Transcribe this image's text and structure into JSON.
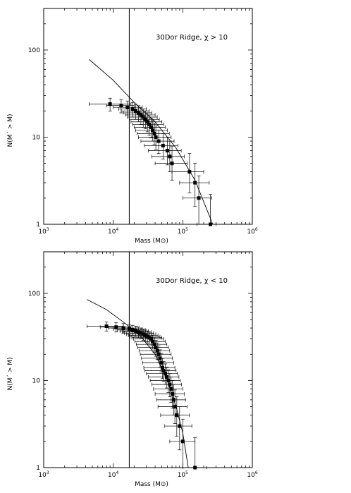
{
  "chart_data": [
    {
      "type": "scatter",
      "annotation": "30Dor Ridge, χ > 10",
      "xlabel": "Mass (M⊙)",
      "ylabel": "N(M´ > M)",
      "xscale": "log",
      "yscale": "log",
      "xlim": [
        1000,
        1000000
      ],
      "ylim": [
        1,
        300
      ],
      "xticks": [
        {
          "base": "10",
          "exp": "3"
        },
        {
          "base": "10",
          "exp": "4"
        },
        {
          "base": "10",
          "exp": "5"
        },
        {
          "base": "10",
          "exp": "6"
        }
      ],
      "yticks": [
        "1",
        "10",
        "100"
      ],
      "threshold_mass": 17000,
      "fit_line": [
        [
          4500,
          78
        ],
        [
          10000,
          45
        ],
        [
          20000,
          25
        ],
        [
          40000,
          15
        ],
        [
          80000,
          7.5
        ],
        [
          150000,
          3.2
        ],
        [
          270000,
          1
        ]
      ],
      "points": [
        {
          "x": 9000,
          "y": 24,
          "xerr": [
            4500,
            18000
          ],
          "yerr": [
            20,
            28
          ]
        },
        {
          "x": 13000,
          "y": 23,
          "xerr": [
            8000,
            20000
          ],
          "yerr": [
            19,
            27
          ]
        },
        {
          "x": 16000,
          "y": 22,
          "xerr": [
            10000,
            26000
          ],
          "yerr": [
            18,
            26
          ]
        },
        {
          "x": 19000,
          "y": 21,
          "xerr": [
            12000,
            30000
          ],
          "yerr": [
            17,
            25
          ]
        },
        {
          "x": 21000,
          "y": 20,
          "xerr": [
            13000,
            33000
          ],
          "yerr": [
            16,
            24
          ]
        },
        {
          "x": 23000,
          "y": 19,
          "xerr": [
            14000,
            36000
          ],
          "yerr": [
            15,
            23
          ]
        },
        {
          "x": 25000,
          "y": 18,
          "xerr": [
            15000,
            40000
          ],
          "yerr": [
            14,
            22
          ]
        },
        {
          "x": 27000,
          "y": 17,
          "xerr": [
            16000,
            43000
          ],
          "yerr": [
            13,
            21
          ]
        },
        {
          "x": 29000,
          "y": 16,
          "xerr": [
            17000,
            46000
          ],
          "yerr": [
            12.5,
            20
          ]
        },
        {
          "x": 31000,
          "y": 15,
          "xerr": [
            18000,
            50000
          ],
          "yerr": [
            11.5,
            19
          ]
        },
        {
          "x": 33000,
          "y": 14,
          "xerr": [
            19000,
            53000
          ],
          "yerr": [
            10.5,
            18
          ]
        },
        {
          "x": 35000,
          "y": 13,
          "xerr": [
            20000,
            56000
          ],
          "yerr": [
            9.8,
            16.5
          ]
        },
        {
          "x": 37000,
          "y": 12,
          "xerr": [
            21000,
            60000
          ],
          "yerr": [
            9,
            15.5
          ]
        },
        {
          "x": 39000,
          "y": 11,
          "xerr": [
            22000,
            64000
          ],
          "yerr": [
            8.2,
            14.5
          ]
        },
        {
          "x": 41000,
          "y": 10,
          "xerr": [
            23000,
            68000
          ],
          "yerr": [
            7.3,
            13.5
          ]
        },
        {
          "x": 45000,
          "y": 9,
          "xerr": [
            25000,
            75000
          ],
          "yerr": [
            6.5,
            12
          ]
        },
        {
          "x": 52000,
          "y": 8,
          "xerr": [
            28000,
            85000
          ],
          "yerr": [
            5.6,
            11
          ]
        },
        {
          "x": 60000,
          "y": 7,
          "xerr": [
            32000,
            95000
          ],
          "yerr": [
            4.8,
            10
          ]
        },
        {
          "x": 65000,
          "y": 6,
          "xerr": [
            36000,
            105000
          ],
          "yerr": [
            4,
            9
          ]
        },
        {
          "x": 70000,
          "y": 5,
          "xerr": [
            40000,
            115000
          ],
          "yerr": [
            3.2,
            7.8
          ]
        },
        {
          "x": 125000,
          "y": 4,
          "xerr": [
            70000,
            200000
          ],
          "yerr": [
            2.3,
            6.5
          ]
        },
        {
          "x": 150000,
          "y": 3,
          "xerr": [
            90000,
            240000
          ],
          "yerr": [
            1.6,
            5
          ]
        },
        {
          "x": 170000,
          "y": 2,
          "xerr": [
            100000,
            260000
          ],
          "yerr": [
            1,
            3.6
          ]
        },
        {
          "x": 250000,
          "y": 1,
          "xerr": [
            160000,
            300000
          ],
          "yerr": [
            1,
            2.2
          ]
        }
      ]
    },
    {
      "type": "scatter",
      "annotation": "30Dor Ridge, χ < 10",
      "xlabel": "Mass (M⊙)",
      "ylabel": "N(M´ > M)",
      "xscale": "log",
      "yscale": "log",
      "xlim": [
        1000,
        1000000
      ],
      "ylim": [
        1,
        300
      ],
      "xticks": [
        {
          "base": "10",
          "exp": "3"
        },
        {
          "base": "10",
          "exp": "4"
        },
        {
          "base": "10",
          "exp": "5"
        },
        {
          "base": "10",
          "exp": "6"
        }
      ],
      "yticks": [
        "1",
        "10",
        "100"
      ],
      "threshold_mass": 17000,
      "fit_line": [
        [
          4200,
          85
        ],
        [
          8000,
          65
        ],
        [
          15000,
          45
        ],
        [
          25000,
          32
        ],
        [
          40000,
          20
        ],
        [
          60000,
          10
        ],
        [
          80000,
          5
        ],
        [
          100000,
          2.5
        ],
        [
          120000,
          1
        ]
      ],
      "points": [
        {
          "x": 8000,
          "y": 42,
          "xerr": [
            4200,
            14000
          ],
          "yerr": [
            37,
            47
          ]
        },
        {
          "x": 11000,
          "y": 41,
          "xerr": [
            6500,
            18000
          ],
          "yerr": [
            36,
            46
          ]
        },
        {
          "x": 14000,
          "y": 40,
          "xerr": [
            8500,
            22000
          ],
          "yerr": [
            35,
            45
          ]
        },
        {
          "x": 17000,
          "y": 39,
          "xerr": [
            10000,
            26000
          ],
          "yerr": [
            34,
            44
          ]
        },
        {
          "x": 19000,
          "y": 38,
          "xerr": [
            11500,
            29000
          ],
          "yerr": [
            33,
            43
          ]
        },
        {
          "x": 21000,
          "y": 37,
          "xerr": [
            12500,
            32000
          ],
          "yerr": [
            32,
            42
          ]
        },
        {
          "x": 23000,
          "y": 36,
          "xerr": [
            13500,
            35000
          ],
          "yerr": [
            31,
            41
          ]
        },
        {
          "x": 25000,
          "y": 35,
          "xerr": [
            14500,
            38000
          ],
          "yerr": [
            30,
            40
          ]
        },
        {
          "x": 27000,
          "y": 34,
          "xerr": [
            15500,
            41000
          ],
          "yerr": [
            29,
            39
          ]
        },
        {
          "x": 29000,
          "y": 33,
          "xerr": [
            16500,
            44000
          ],
          "yerr": [
            28,
            38
          ]
        },
        {
          "x": 31000,
          "y": 32,
          "xerr": [
            17500,
            47000
          ],
          "yerr": [
            27,
            37
          ]
        },
        {
          "x": 33000,
          "y": 31,
          "xerr": [
            18500,
            50000
          ],
          "yerr": [
            26,
            36
          ]
        },
        {
          "x": 35000,
          "y": 30,
          "xerr": [
            19500,
            53000
          ],
          "yerr": [
            25,
            35
          ]
        },
        {
          "x": 37000,
          "y": 28,
          "xerr": [
            20500,
            56000
          ],
          "yerr": [
            23,
            33
          ]
        },
        {
          "x": 39000,
          "y": 26,
          "xerr": [
            21500,
            59000
          ],
          "yerr": [
            21,
            31
          ]
        },
        {
          "x": 41000,
          "y": 24,
          "xerr": [
            22500,
            62000
          ],
          "yerr": [
            19,
            29
          ]
        },
        {
          "x": 43000,
          "y": 22,
          "xerr": [
            23500,
            65000
          ],
          "yerr": [
            17.5,
            27
          ]
        },
        {
          "x": 45000,
          "y": 20,
          "xerr": [
            24500,
            68000
          ],
          "yerr": [
            16,
            25
          ]
        },
        {
          "x": 47000,
          "y": 18,
          "xerr": [
            25500,
            71000
          ],
          "yerr": [
            14,
            22.5
          ]
        },
        {
          "x": 49000,
          "y": 16,
          "xerr": [
            26500,
            74000
          ],
          "yerr": [
            12.5,
            20.5
          ]
        },
        {
          "x": 51000,
          "y": 14,
          "xerr": [
            27500,
            77000
          ],
          "yerr": [
            10.5,
            18
          ]
        },
        {
          "x": 53000,
          "y": 13,
          "xerr": [
            28500,
            80000
          ],
          "yerr": [
            9.8,
            16.5
          ]
        },
        {
          "x": 56000,
          "y": 12,
          "xerr": [
            30000,
            84000
          ],
          "yerr": [
            9,
            15.5
          ]
        },
        {
          "x": 59000,
          "y": 11,
          "xerr": [
            32000,
            88000
          ],
          "yerr": [
            8.2,
            14.2
          ]
        },
        {
          "x": 62000,
          "y": 10,
          "xerr": [
            34000,
            92000
          ],
          "yerr": [
            7.3,
            13.2
          ]
        },
        {
          "x": 65000,
          "y": 9,
          "xerr": [
            36000,
            96000
          ],
          "yerr": [
            6.5,
            12
          ]
        },
        {
          "x": 68000,
          "y": 8,
          "xerr": [
            38000,
            100000
          ],
          "yerr": [
            5.6,
            11
          ]
        },
        {
          "x": 71000,
          "y": 7,
          "xerr": [
            40000,
            105000
          ],
          "yerr": [
            4.8,
            10
          ]
        },
        {
          "x": 74000,
          "y": 6,
          "xerr": [
            42000,
            110000
          ],
          "yerr": [
            4,
            9
          ]
        },
        {
          "x": 77000,
          "y": 5,
          "xerr": [
            44000,
            115000
          ],
          "yerr": [
            3.2,
            7.8
          ]
        },
        {
          "x": 82000,
          "y": 4,
          "xerr": [
            48000,
            125000
          ],
          "yerr": [
            2.3,
            6.5
          ]
        },
        {
          "x": 90000,
          "y": 3,
          "xerr": [
            55000,
            135000
          ],
          "yerr": [
            1.6,
            5
          ]
        },
        {
          "x": 100000,
          "y": 2,
          "xerr": [
            65000,
            150000
          ],
          "yerr": [
            1,
            3.6
          ]
        },
        {
          "x": 150000,
          "y": 1,
          "xerr": [
            100000,
            220000
          ],
          "yerr": [
            1,
            2.2
          ]
        }
      ]
    }
  ]
}
